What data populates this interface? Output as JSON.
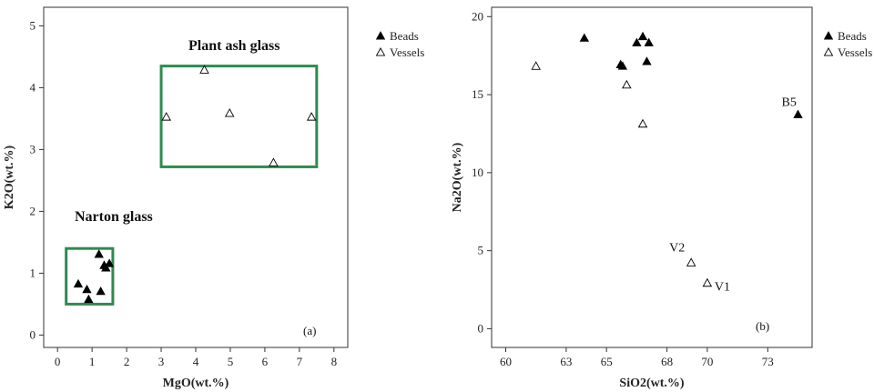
{
  "chart_data": [
    {
      "type": "scatter",
      "panel_label": "(a)",
      "xlabel": "MgO(wt.%)",
      "ylabel": "K2O(wt.%)",
      "xlim": [
        -0.4,
        8.4
      ],
      "ylim": [
        -0.2,
        5.3
      ],
      "xticks": [
        0,
        1,
        2,
        3,
        4,
        5,
        6,
        7,
        8
      ],
      "yticks": [
        0,
        1,
        2,
        3,
        4,
        5
      ],
      "grid": false,
      "legend_position": "outside-top-right",
      "series": [
        {
          "name": "Beads",
          "marker": "filled-triangle",
          "points": [
            [
              0.6,
              0.82
            ],
            [
              0.85,
              0.73
            ],
            [
              0.9,
              0.57
            ],
            [
              1.2,
              1.3
            ],
            [
              1.25,
              0.7
            ],
            [
              1.35,
              1.12
            ],
            [
              1.4,
              1.08
            ],
            [
              1.5,
              1.15
            ]
          ]
        },
        {
          "name": "Vessels",
          "marker": "open-triangle",
          "points": [
            [
              3.15,
              3.52
            ],
            [
              4.25,
              4.28
            ],
            [
              4.98,
              3.58
            ],
            [
              6.25,
              2.78
            ],
            [
              7.35,
              3.52
            ]
          ]
        }
      ],
      "regions": [
        {
          "label": "Narton glass",
          "x": [
            0.25,
            1.6
          ],
          "y": [
            0.5,
            1.4
          ],
          "color": "#2e8b4e"
        },
        {
          "label": "Plant ash glass",
          "x": [
            3.0,
            7.5
          ],
          "y": [
            2.72,
            4.35
          ],
          "color": "#2e8b4e"
        }
      ]
    },
    {
      "type": "scatter",
      "panel_label": "(b)",
      "xlabel": "SiO2(wt.%)",
      "ylabel": "Na2O(wt.%)",
      "xlim": [
        59.3,
        75.2
      ],
      "ylim": [
        -1.2,
        20.6
      ],
      "xticks": [
        60,
        63,
        65,
        68,
        70,
        73
      ],
      "yticks": [
        0,
        5,
        10,
        15,
        20
      ],
      "grid": false,
      "legend_position": "outside-top-right",
      "series": [
        {
          "name": "Beads",
          "marker": "filled-triangle",
          "points": [
            [
              63.9,
              18.6
            ],
            [
              65.7,
              16.9
            ],
            [
              65.8,
              16.8
            ],
            [
              66.5,
              18.3
            ],
            [
              66.8,
              18.7
            ],
            [
              67.0,
              17.1
            ],
            [
              67.1,
              18.3
            ],
            [
              74.5,
              13.7
            ]
          ]
        },
        {
          "name": "Vessels",
          "marker": "open-triangle",
          "points": [
            [
              61.5,
              16.8
            ],
            [
              66.0,
              15.6
            ],
            [
              66.8,
              13.1
            ],
            [
              69.2,
              4.2
            ],
            [
              70.0,
              2.9
            ]
          ]
        }
      ],
      "annotations": [
        {
          "text": "B5",
          "x": 74.5,
          "y": 13.7
        },
        {
          "text": "V2",
          "x": 69.2,
          "y": 4.2
        },
        {
          "text": "V1",
          "x": 70.0,
          "y": 2.9
        }
      ]
    }
  ]
}
